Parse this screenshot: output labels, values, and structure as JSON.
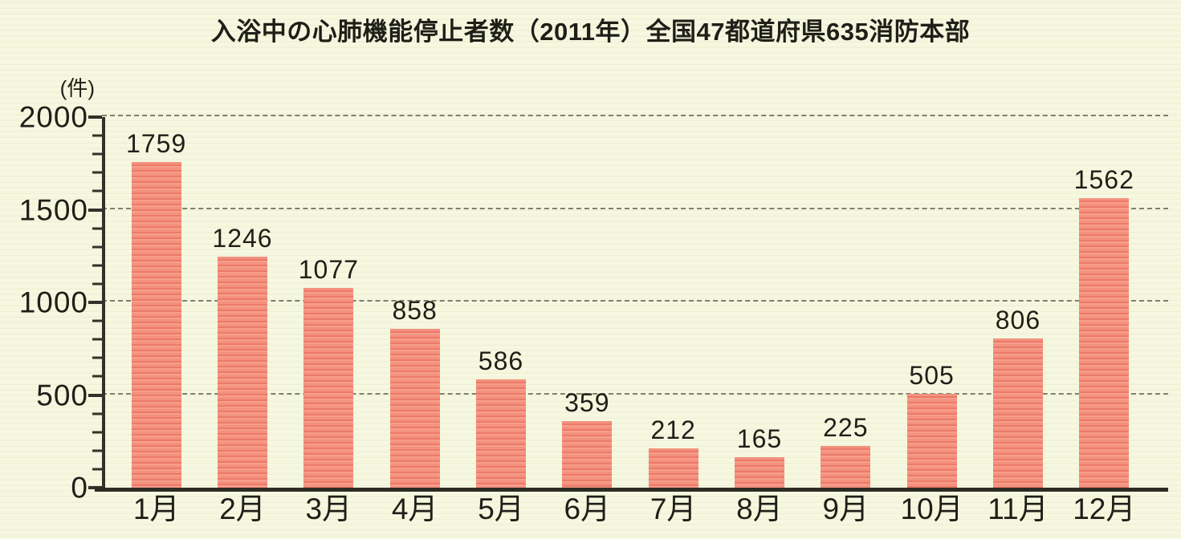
{
  "chart_data": {
    "type": "bar",
    "title": "入浴中の心肺機能停止者数（2011年）全国47都道府県635消防本部",
    "categories": [
      "1月",
      "2月",
      "3月",
      "4月",
      "5月",
      "6月",
      "7月",
      "8月",
      "9月",
      "10月",
      "11月",
      "12月"
    ],
    "values": [
      1759,
      1246,
      1077,
      858,
      586,
      359,
      212,
      165,
      225,
      505,
      806,
      1562
    ],
    "xlabel": "",
    "ylabel": "(件)",
    "ylim": [
      0,
      2000
    ],
    "yticks": [
      0,
      500,
      1000,
      1500,
      2000
    ],
    "minor_tick_step": 100,
    "grid": "horizontal-dashed",
    "legend": "none",
    "colors": {
      "bar": "#f18a7b",
      "bar_stripe": "#ec7a69",
      "background": "#f4f6dd",
      "axis": "#32322a",
      "gridline": "#5a5a46",
      "text": "#1f1f18"
    }
  }
}
